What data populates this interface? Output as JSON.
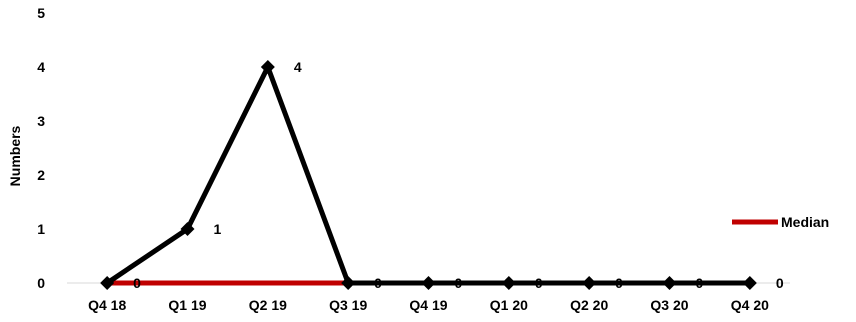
{
  "chart_data": {
    "type": "line",
    "title": "",
    "xlabel": "",
    "ylabel": "Numbers",
    "ylim": [
      0,
      5
    ],
    "yticks": [
      0,
      1,
      2,
      3,
      4,
      5
    ],
    "categories": [
      "Q4 18",
      "Q1 19",
      "Q2 19",
      "Q3 19",
      "Q4 19",
      "Q1 20",
      "Q2 20",
      "Q3 20",
      "Q4 20"
    ],
    "series": [
      {
        "values": [
          0,
          1,
          4,
          0,
          0,
          0,
          0,
          0,
          0
        ],
        "color": "#000000",
        "marker": "diamond",
        "data_labels": [
          "0",
          "1",
          "4",
          "0",
          "0",
          "0",
          "0",
          "0",
          "0"
        ]
      },
      {
        "name": "Median",
        "values": [
          0,
          0,
          0,
          0,
          0,
          0,
          0,
          0,
          0
        ],
        "color": "#c00000"
      }
    ],
    "legend": {
      "position": "right",
      "entries": [
        "Median"
      ]
    },
    "grid": false
  }
}
